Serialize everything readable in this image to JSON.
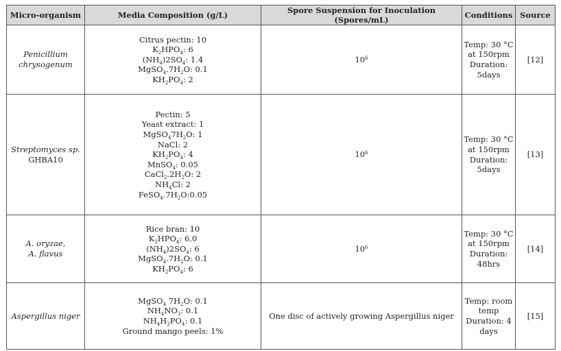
{
  "headers": {
    "organism": "Micro-organism",
    "media": "Media Composition (g/L)",
    "spore": "Spore Suspension for Inoculation (Spores/mL)",
    "conditions": "Conditions",
    "source": "Source"
  },
  "rows": [
    {
      "organism_line1": "Penicillium",
      "organism_line2": "chrysogenum",
      "media": {
        "m1": "Citrus pectin: 10",
        "m2_a": "K",
        "m2_b": "HPO",
        "m2_c": ": 6",
        "m3_a": "(NH",
        "m3_b": ")2SO",
        "m3_c": ": 1.4",
        "m4_a": "MgSO",
        "m4_b": ".7H",
        "m4_c": "O: 0.1",
        "m5_a": "KH",
        "m5_b": "PO",
        "m5_c": ": 2"
      },
      "spore_base": "10",
      "spore_exp": "6",
      "cond1": "Temp: 30 °C",
      "cond2": "at 150rpm",
      "cond3": "Duration:",
      "cond4": "5days",
      "source": "[12]"
    },
    {
      "organism_line1": "Streptomyces sp.",
      "organism_line2": "GHBA10",
      "media": {
        "m1": "Pectin: 5",
        "m2": "Yeast extract: 1",
        "m3_a": "MgSO",
        "m3_b": "7H",
        "m3_c": "O: 1",
        "m4": "NaCl: 2",
        "m5_a": "KH",
        "m5_b": "PO",
        "m5_c": ": 4",
        "m6_a": "MnSO",
        "m6_b": ": 0.05",
        "m7_a": "CaCl",
        "m7_b": ".2H",
        "m7_c": "O: 2",
        "m8_a": "NH",
        "m8_b": "Cl: 2",
        "m9_a": "FeSO",
        "m9_b": ".7H",
        "m9_c": "O:0.05"
      },
      "spore_base": "10",
      "spore_exp": "6",
      "cond1": "Temp: 30 °C",
      "cond2": "at 150rpm",
      "cond3": "Duration:",
      "cond4": "5days",
      "source": "[13]"
    },
    {
      "organism_line1": "A. oryzae,",
      "organism_line2": "A. flavus",
      "media": {
        "m1": "Rice bran: 10",
        "m2_a": "K",
        "m2_b": "HPO",
        "m2_c": ": 6.0",
        "m3_a": "(NH",
        "m3_b": ")2SO",
        "m3_c": ": 6",
        "m4_a": "MgSO",
        "m4_b": ".7H",
        "m4_c": "O: 0.1",
        "m5_a": "KH",
        "m5_b": "PO",
        "m5_c": ": 6"
      },
      "spore_base": "10",
      "spore_exp": "6",
      "cond1": "Temp: 30 °C",
      "cond2": "at 150rpm",
      "cond3": "Duration:",
      "cond4": "48hrs",
      "source": "[14]"
    },
    {
      "organism_line1": "Aspergillus niger",
      "media": {
        "m1_a": "MgSO",
        "m1_b": " 7H",
        "m1_c": "O: 0.1",
        "m2_a": "NH",
        "m2_b": "NO",
        "m2_c": ": 0.1",
        "m3_a": "NH",
        "m3_b": "H",
        "m3_c": "PO",
        "m3_d": ": 0.1",
        "m4": "Ground mango peels: 1%"
      },
      "spore_text": "One disc of actively growing Aspergillus niger",
      "cond1": "Temp: room",
      "cond2": "temp",
      "cond3": "Duration: 4",
      "cond4": "days",
      "source": "[15]"
    }
  ]
}
